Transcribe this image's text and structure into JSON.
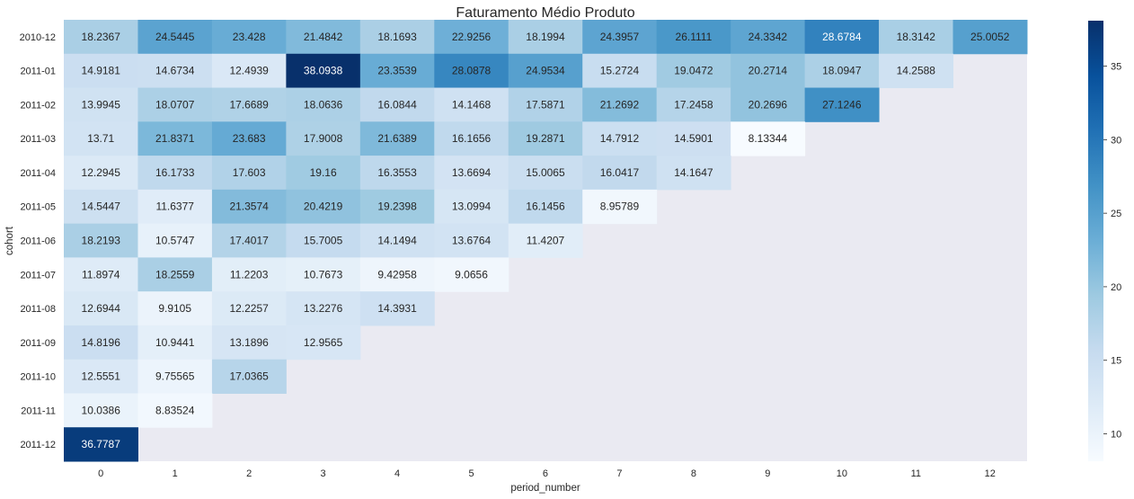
{
  "chart_data": {
    "type": "heatmap",
    "title": "Faturamento Médio Produto",
    "xlabel": "period_number",
    "ylabel": "cohort",
    "x": [
      "0",
      "1",
      "2",
      "3",
      "4",
      "5",
      "6",
      "7",
      "8",
      "9",
      "10",
      "11",
      "12"
    ],
    "y": [
      "2010-12",
      "2011-01",
      "2011-02",
      "2011-03",
      "2011-04",
      "2011-05",
      "2011-06",
      "2011-07",
      "2011-08",
      "2011-09",
      "2011-10",
      "2011-11",
      "2011-12"
    ],
    "values": [
      [
        "18.2367",
        "24.5445",
        "23.428",
        "21.4842",
        "18.1693",
        "22.9256",
        "18.1994",
        "24.3957",
        "26.1111",
        "24.3342",
        "28.6784",
        "18.3142",
        "25.0052"
      ],
      [
        "14.9181",
        "14.6734",
        "12.4939",
        "38.0938",
        "23.3539",
        "28.0878",
        "24.9534",
        "15.2724",
        "19.0472",
        "20.2714",
        "18.0947",
        "14.2588",
        null
      ],
      [
        "13.9945",
        "18.0707",
        "17.6689",
        "18.0636",
        "16.0844",
        "14.1468",
        "17.5871",
        "21.2692",
        "17.2458",
        "20.2696",
        "27.1246",
        null,
        null
      ],
      [
        "13.71",
        "21.8371",
        "23.683",
        "17.9008",
        "21.6389",
        "16.1656",
        "19.2871",
        "14.7912",
        "14.5901",
        "8.13344",
        null,
        null,
        null
      ],
      [
        "12.2945",
        "16.1733",
        "17.603",
        "19.16",
        "16.3553",
        "13.6694",
        "15.0065",
        "16.0417",
        "14.1647",
        null,
        null,
        null,
        null
      ],
      [
        "14.5447",
        "11.6377",
        "21.3574",
        "20.4219",
        "19.2398",
        "13.0994",
        "16.1456",
        "8.95789",
        null,
        null,
        null,
        null,
        null
      ],
      [
        "18.2193",
        "10.5747",
        "17.4017",
        "15.7005",
        "14.1494",
        "13.6764",
        "11.4207",
        null,
        null,
        null,
        null,
        null,
        null
      ],
      [
        "11.8974",
        "18.2559",
        "11.2203",
        "10.7673",
        "9.42958",
        "9.0656",
        null,
        null,
        null,
        null,
        null,
        null,
        null
      ],
      [
        "12.6944",
        "9.9105",
        "12.2257",
        "13.2276",
        "14.3931",
        null,
        null,
        null,
        null,
        null,
        null,
        null,
        null
      ],
      [
        "14.8196",
        "10.9441",
        "13.1896",
        "12.9565",
        null,
        null,
        null,
        null,
        null,
        null,
        null,
        null,
        null
      ],
      [
        "12.5551",
        "9.75565",
        "17.0365",
        null,
        null,
        null,
        null,
        null,
        null,
        null,
        null,
        null,
        null
      ],
      [
        "10.0386",
        "8.83524",
        null,
        null,
        null,
        null,
        null,
        null,
        null,
        null,
        null,
        null,
        null
      ],
      [
        "36.7787",
        null,
        null,
        null,
        null,
        null,
        null,
        null,
        null,
        null,
        null,
        null,
        null
      ]
    ],
    "vmin": 8.13344,
    "vmax": 38.0938,
    "colormap": "Blues",
    "colorbar_ticks": [
      "10",
      "15",
      "20",
      "25",
      "30",
      "35"
    ],
    "missing_color": "#eaeaf2",
    "text_color_light": "#ffffff",
    "text_color_dark": "#262626",
    "grid": false,
    "legend": "colorbar-right"
  }
}
